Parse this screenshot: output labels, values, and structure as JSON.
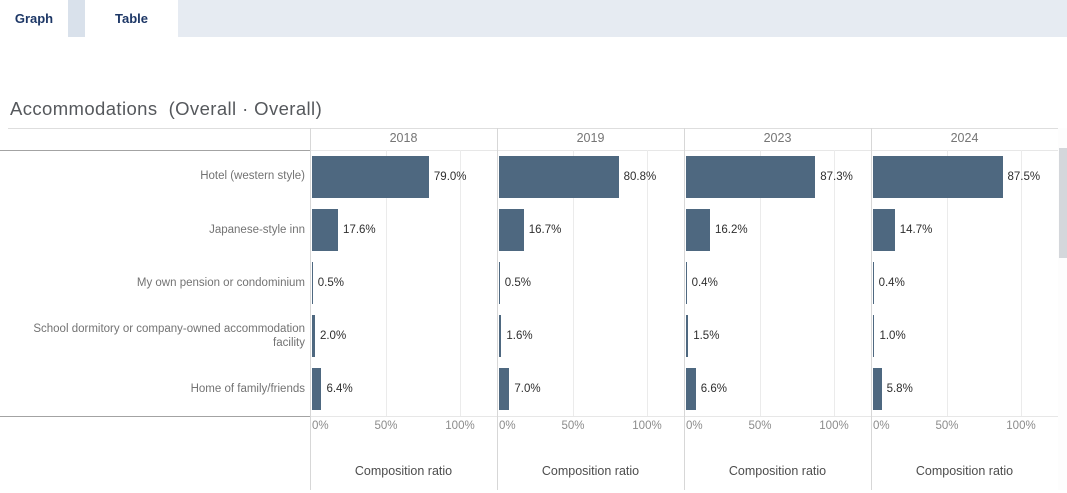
{
  "tabs": [
    {
      "label": "Graph",
      "active": true
    },
    {
      "label": "Table",
      "active": false
    }
  ],
  "title": "Accommodations  (Overall · Overall)",
  "chart_data": {
    "type": "bar",
    "orientation": "horizontal",
    "title": "Accommodations (Overall · Overall)",
    "categories": [
      "Hotel (western style)",
      "Japanese-style inn",
      "My own pension or condominium",
      "School dormitory or company-owned accommodation\nfacility",
      "Home of family/friends"
    ],
    "panels": [
      "2018",
      "2019",
      "2023",
      "2024"
    ],
    "series": [
      {
        "name": "2018",
        "values": [
          79.0,
          17.6,
          0.5,
          2.0,
          6.4
        ],
        "labels": [
          "79.0%",
          "17.6%",
          "0.5%",
          "2.0%",
          "6.4%"
        ]
      },
      {
        "name": "2019",
        "values": [
          80.8,
          16.7,
          0.5,
          1.6,
          7.0
        ],
        "labels": [
          "80.8%",
          "16.7%",
          "0.5%",
          "1.6%",
          "7.0%"
        ]
      },
      {
        "name": "2023",
        "values": [
          87.3,
          16.2,
          0.4,
          1.5,
          6.6
        ],
        "labels": [
          "87.3%",
          "16.2%",
          "0.4%",
          "1.5%",
          "6.6%"
        ]
      },
      {
        "name": "2024",
        "values": [
          87.5,
          14.7,
          0.4,
          1.0,
          5.8
        ],
        "labels": [
          "87.5%",
          "14.7%",
          "0.4%",
          "1.0%",
          "5.8%"
        ]
      }
    ],
    "xlabel": "Composition ratio",
    "x_ticks": [
      "0%",
      "50%",
      "100%"
    ],
    "xlim": [
      0,
      100
    ],
    "grid": "on",
    "bar_color": "#4e6880"
  }
}
